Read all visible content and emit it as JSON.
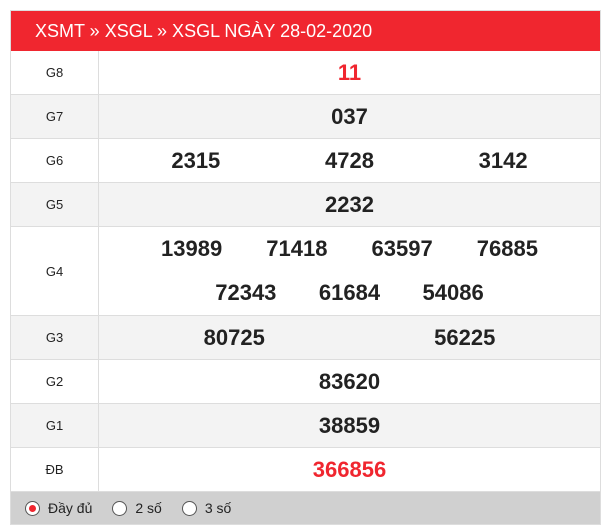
{
  "header": {
    "title": "XSMT » XSGL » XSGL NGÀY 28-02-2020"
  },
  "rows": [
    {
      "label": "G8",
      "numbers": [
        "11"
      ],
      "red": true
    },
    {
      "label": "G7",
      "numbers": [
        "037"
      ]
    },
    {
      "label": "G6",
      "numbers": [
        "2315",
        "4728",
        "3142"
      ]
    },
    {
      "label": "G5",
      "numbers": [
        "2232"
      ]
    },
    {
      "label": "G4",
      "numbers": [
        "13989",
        "71418",
        "63597",
        "76885"
      ],
      "numbers2": [
        "72343",
        "61684",
        "54086"
      ]
    },
    {
      "label": "G3",
      "numbers": [
        "80725",
        "56225"
      ]
    },
    {
      "label": "G2",
      "numbers": [
        "83620"
      ]
    },
    {
      "label": "G1",
      "numbers": [
        "38859"
      ]
    },
    {
      "label": "ĐB",
      "numbers": [
        "366856"
      ],
      "red": true
    }
  ],
  "footer": {
    "options": [
      {
        "label": "Đầy đủ",
        "selected": true
      },
      {
        "label": "2 số",
        "selected": false
      },
      {
        "label": "3 số",
        "selected": false
      }
    ]
  },
  "colors": {
    "accent": "#f0262f"
  }
}
